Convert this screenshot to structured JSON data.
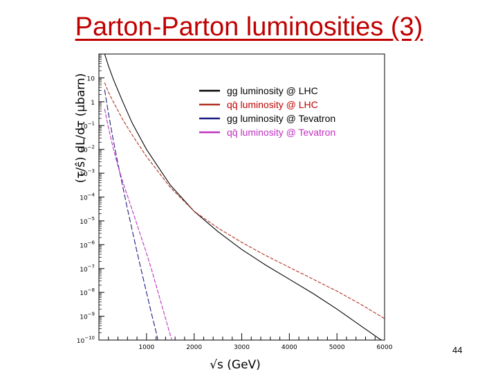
{
  "slide": {
    "title": "Parton-Parton luminosities (3)",
    "number": "44"
  },
  "chart_data": {
    "type": "line",
    "xlabel": "√s (GeV)",
    "ylabel": "(τ/ŝ) dL/dτ (μbarn)",
    "xlim": [
      0,
      6000
    ],
    "ylim": [
      -10,
      2
    ],
    "y_scale": "log",
    "x_ticks": [
      {
        "value": 1000,
        "label": "1000"
      },
      {
        "value": 2000,
        "label": "2000"
      },
      {
        "value": 3000,
        "label": "3000"
      },
      {
        "value": 4000,
        "label": "4000"
      },
      {
        "value": 5000,
        "label": "5000"
      },
      {
        "value": 6000,
        "label": "6000"
      }
    ],
    "y_ticks": [
      {
        "exp": 1,
        "base": "10",
        "sup": ""
      },
      {
        "exp": 0,
        "base": "1",
        "sup": ""
      },
      {
        "exp": -1,
        "base": "10",
        "sup": "−1"
      },
      {
        "exp": -2,
        "base": "10",
        "sup": "−2"
      },
      {
        "exp": -3,
        "base": "10",
        "sup": "−3"
      },
      {
        "exp": -4,
        "base": "10",
        "sup": "−4"
      },
      {
        "exp": -5,
        "base": "10",
        "sup": "−5"
      },
      {
        "exp": -6,
        "base": "10",
        "sup": "−6"
      },
      {
        "exp": -7,
        "base": "10",
        "sup": "−7"
      },
      {
        "exp": -8,
        "base": "10",
        "sup": "−8"
      },
      {
        "exp": -9,
        "base": "10",
        "sup": "−9"
      },
      {
        "exp": -10,
        "base": "10",
        "sup": "−10"
      }
    ],
    "grid": false,
    "legend_position": "top-center",
    "series": [
      {
        "name": "gg luminosity @ LHC",
        "color": "#000000",
        "text_color": "#000000",
        "dash": "solid",
        "x": [
          120,
          200,
          300,
          500,
          700,
          1000,
          1500,
          2000,
          2500,
          3000,
          3500,
          4000,
          4500,
          5000,
          5500,
          6000
        ],
        "log10_y": [
          2.0,
          1.5,
          0.95,
          0.0,
          -0.9,
          -2.0,
          -3.5,
          -4.6,
          -5.45,
          -6.2,
          -6.85,
          -7.45,
          -8.05,
          -8.7,
          -9.4,
          -10.1
        ]
      },
      {
        "name": "qq̄ luminosity @ LHC",
        "color": "#b03020",
        "text_color": "#c00000",
        "dash": "5,2",
        "x": [
          120,
          200,
          300,
          500,
          700,
          1000,
          1500,
          2000,
          2500,
          3000,
          3500,
          4000,
          4500,
          5000,
          5500,
          6000
        ],
        "log10_y": [
          0.8,
          0.4,
          0.0,
          -0.75,
          -1.4,
          -2.3,
          -3.6,
          -4.6,
          -5.3,
          -5.9,
          -6.45,
          -6.95,
          -7.45,
          -7.95,
          -8.5,
          -9.1
        ]
      },
      {
        "name": "gg luminosity @ Tevatron",
        "color": "#1a1a80",
        "text_color": "#000000",
        "dash": "8,3",
        "x": [
          120,
          200,
          300,
          400,
          500,
          600,
          700,
          800,
          900,
          1000,
          1100,
          1200,
          1250
        ],
        "log10_y": [
          0.5,
          -0.5,
          -1.6,
          -2.6,
          -3.55,
          -4.5,
          -5.4,
          -6.3,
          -7.15,
          -8.0,
          -8.85,
          -9.65,
          -10.1
        ]
      },
      {
        "name": "qq̄ luminosity @ Tevatron",
        "color": "#c030c0",
        "text_color": "#c030c0",
        "dash": "6,2",
        "x": [
          120,
          200,
          300,
          400,
          500,
          600,
          700,
          800,
          900,
          1000,
          1100,
          1200,
          1300,
          1400,
          1500,
          1550
        ],
        "log10_y": [
          -0.3,
          -1.1,
          -1.95,
          -2.7,
          -3.35,
          -3.95,
          -4.55,
          -5.15,
          -5.75,
          -6.35,
          -7.0,
          -7.7,
          -8.4,
          -9.1,
          -9.8,
          -10.1
        ]
      }
    ]
  }
}
